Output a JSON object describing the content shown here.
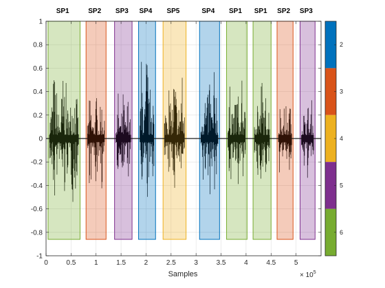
{
  "chart_data": {
    "type": "area",
    "title": "",
    "xlabel": "Samples",
    "ylabel": "",
    "x_exponent_label": "10^5",
    "xlim": [
      0,
      550000
    ],
    "ylim": [
      -1,
      1
    ],
    "grid": true,
    "x_ticks": [
      0,
      50000,
      100000,
      150000,
      200000,
      250000,
      300000,
      350000,
      400000,
      450000,
      500000
    ],
    "x_tick_labels": [
      "0",
      "0.5",
      "1",
      "1.5",
      "2",
      "2.5",
      "3",
      "3.5",
      "4",
      "4.5",
      "5"
    ],
    "y_ticks": [
      -1,
      -0.8,
      -0.6,
      -0.4,
      -0.2,
      0,
      0.2,
      0.4,
      0.6,
      0.8,
      1
    ],
    "y_tick_labels": [
      "-1",
      "-0.8",
      "-0.6",
      "-0.4",
      "-0.2",
      "0",
      "0.2",
      "0.4",
      "0.6",
      "0.8",
      "1"
    ],
    "segments": [
      {
        "label": "SP1",
        "speaker": 6,
        "start": 4000,
        "end": 68000,
        "color": "#77AC30",
        "peak": 0.57,
        "trough": -0.58
      },
      {
        "label": "SP2",
        "speaker": 3,
        "start": 80000,
        "end": 120000,
        "color": "#D95319",
        "peak": 0.36,
        "trough": -0.42
      },
      {
        "label": "SP3",
        "speaker": 5,
        "start": 137000,
        "end": 172000,
        "color": "#7E2F8E",
        "peak": 0.39,
        "trough": -0.36
      },
      {
        "label": "SP4",
        "speaker": 2,
        "start": 185000,
        "end": 219000,
        "color": "#0072BD",
        "peak": 0.84,
        "trough": -0.62
      },
      {
        "label": "SP5",
        "speaker": 4,
        "start": 234000,
        "end": 280000,
        "color": "#EDB120",
        "peak": 0.63,
        "trough": -0.42
      },
      {
        "label": "SP4",
        "speaker": 2,
        "start": 307000,
        "end": 347000,
        "color": "#0072BD",
        "peak": 0.71,
        "trough": -0.52
      },
      {
        "label": "SP1",
        "speaker": 6,
        "start": 361000,
        "end": 402000,
        "color": "#77AC30",
        "peak": 0.52,
        "trough": -0.48
      },
      {
        "label": "SP1",
        "speaker": 6,
        "start": 414000,
        "end": 450000,
        "color": "#77AC30",
        "peak": 0.58,
        "trough": -0.47
      },
      {
        "label": "SP2",
        "speaker": 3,
        "start": 462000,
        "end": 494000,
        "color": "#D95319",
        "peak": 0.34,
        "trough": -0.39
      },
      {
        "label": "SP3",
        "speaker": 5,
        "start": 508000,
        "end": 538000,
        "color": "#7E2F8E",
        "peak": 0.31,
        "trough": -0.33
      }
    ],
    "segment_box_ylim": [
      -0.86,
      1
    ],
    "colorbar": {
      "categories": [
        {
          "label": "2",
          "color": "#0072BD"
        },
        {
          "label": "3",
          "color": "#D95319"
        },
        {
          "label": "4",
          "color": "#EDB120"
        },
        {
          "label": "5",
          "color": "#7E2F8E"
        },
        {
          "label": "6",
          "color": "#77AC30"
        }
      ]
    }
  }
}
